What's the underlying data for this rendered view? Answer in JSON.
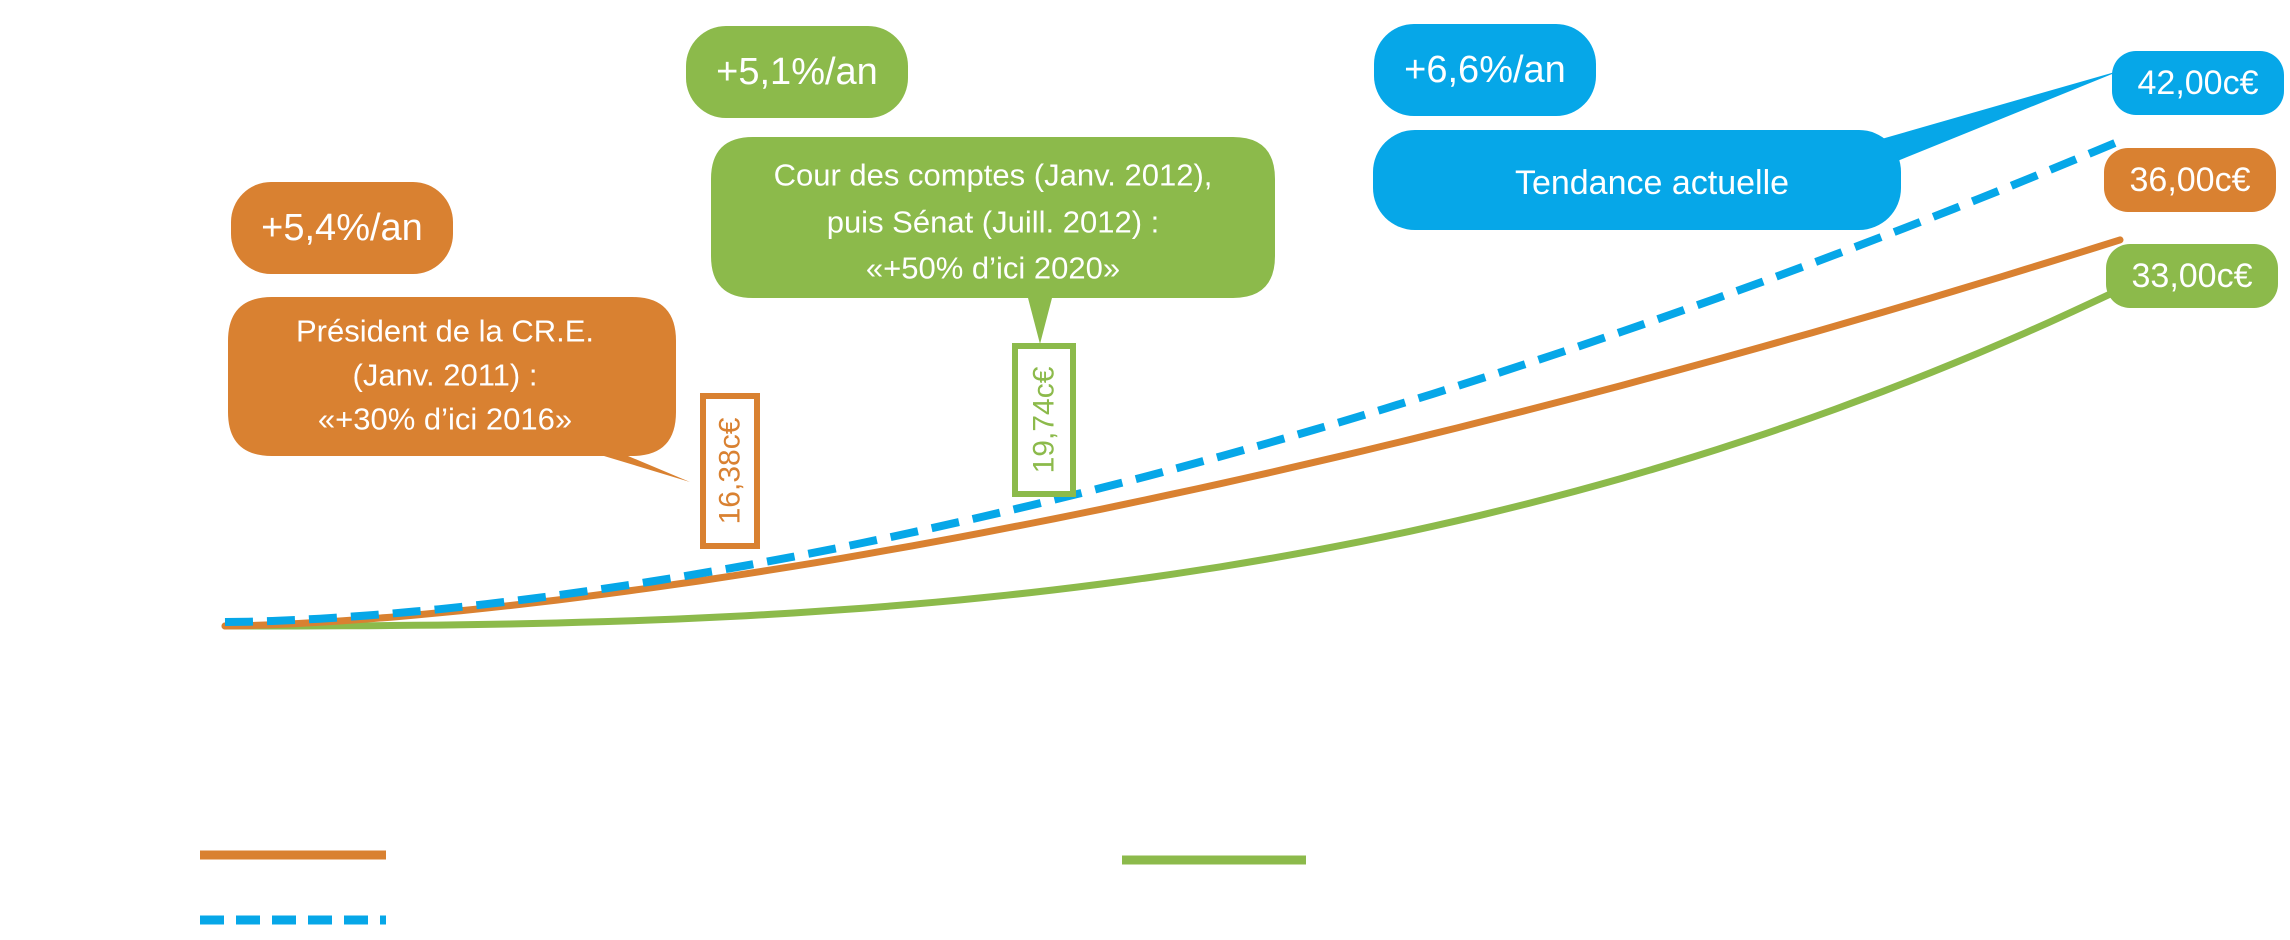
{
  "colors": {
    "orange": "#d98131",
    "green": "#8cba4b",
    "blue": "#06a7e8",
    "white": "#ffffff"
  },
  "chart_data": {
    "type": "line",
    "title": "",
    "xlabel": "",
    "ylabel": "",
    "grid": false,
    "legend": "bottom-left",
    "series": [
      {
        "key": "orange",
        "style": "solid",
        "color": "#d98131",
        "rate_label": "+5,4%/an",
        "start_value": 12.6,
        "end_label": "36,00c€",
        "end_value": 36.0,
        "marker_label": "16,38c€",
        "marker_value": 16.38,
        "callout": [
          "Président de la CR.E.",
          "(Janv. 2011) :",
          "«+30% d’ici 2016»"
        ]
      },
      {
        "key": "green",
        "style": "solid",
        "color": "#8cba4b",
        "rate_label": "+5,1%/an",
        "start_value": 12.6,
        "end_label": "33,00c€",
        "end_value": 33.0,
        "marker_label": "19,74c€",
        "marker_value": 19.74,
        "callout": [
          "Cour des comptes (Janv. 2012),",
          "puis Sénat (Juill. 2012) :",
          "«+50% d’ici 2020»"
        ]
      },
      {
        "key": "blue",
        "style": "dashed",
        "color": "#06a7e8",
        "rate_label": "+6,6%/an",
        "start_value": 12.6,
        "end_label": "42,00c€",
        "end_value": 42.0,
        "callout": [
          "Tendance actuelle"
        ]
      }
    ]
  }
}
